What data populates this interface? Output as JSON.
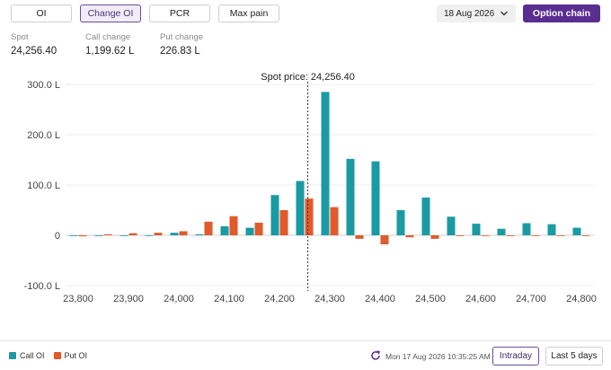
{
  "tabs": [
    {
      "label": "OI",
      "active": false
    },
    {
      "label": "Change OI",
      "active": true
    },
    {
      "label": "PCR",
      "active": false
    },
    {
      "label": "Max pain",
      "active": false
    }
  ],
  "date_select": {
    "value": "18 Aug 2026"
  },
  "option_chain_label": "Option chain",
  "stats": [
    {
      "label": "Spot",
      "value": "24,256.40"
    },
    {
      "label": "Call change",
      "value": "1,199.62 L"
    },
    {
      "label": "Put change",
      "value": "226.83 L"
    }
  ],
  "colors": {
    "call": "#1a9ba3",
    "put": "#e05a2b",
    "accent": "#5a2e91"
  },
  "chart_data": {
    "type": "bar",
    "spot_label": "Spot price: 24,256.40",
    "spot_value": 24256.4,
    "ylim": [
      -100,
      300
    ],
    "yticks": [
      -100,
      0,
      100,
      200,
      300
    ],
    "ytick_labels": [
      "-100.0 L",
      "0",
      "100.0 L",
      "200.0 L",
      "300.0 L"
    ],
    "xlim": [
      23775,
      24825
    ],
    "xticks": [
      23800,
      23900,
      24000,
      24100,
      24200,
      24300,
      24400,
      24500,
      24600,
      24700,
      24800
    ],
    "xtick_labels": [
      "23,800",
      "23,900",
      "24,000",
      "24,100",
      "24,200",
      "24,300",
      "24,400",
      "24,500",
      "24,600",
      "24,700",
      "24,800"
    ],
    "grid": true,
    "legend": "bottom-left",
    "strikes": [
      23800,
      23850,
      23900,
      23950,
      24000,
      24050,
      24100,
      24150,
      24200,
      24250,
      24300,
      24350,
      24400,
      24450,
      24500,
      24550,
      24600,
      24650,
      24700,
      24750,
      24800
    ],
    "series": [
      {
        "name": "Call OI",
        "values": [
          0,
          0,
          0,
          0,
          5,
          2,
          18,
          15,
          80,
          108,
          285,
          152,
          147,
          50,
          75,
          37,
          23,
          13,
          24,
          22,
          15
        ]
      },
      {
        "name": "Put OI",
        "values": [
          -2,
          2,
          4,
          5,
          8,
          27,
          38,
          25,
          50,
          73,
          56,
          -7,
          -18,
          -4,
          -7,
          0,
          -1,
          0,
          0,
          0,
          0
        ]
      }
    ]
  },
  "legend": {
    "call": "Call OI",
    "put": "Put OI"
  },
  "footer": {
    "timestamp": "Mon 17 Aug 2026 10:35:25 AM",
    "intraday_label": "Intraday",
    "last5_label": "Last 5 days"
  }
}
